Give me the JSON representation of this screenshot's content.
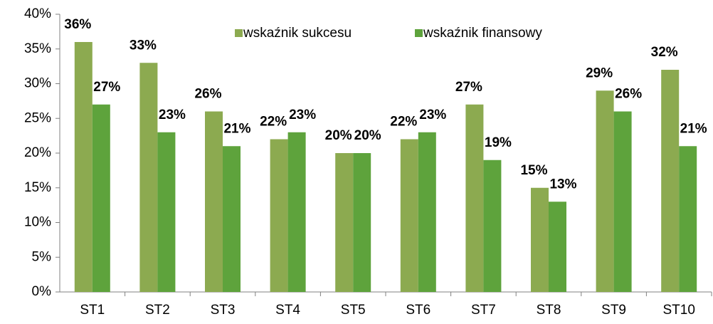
{
  "chart_data": {
    "type": "bar",
    "categories": [
      "ST1",
      "ST2",
      "ST3",
      "ST4",
      "ST5",
      "ST6",
      "ST7",
      "ST8",
      "ST9",
      "ST10"
    ],
    "series": [
      {
        "name": "wskaźnik sukcesu",
        "color": "#8caa50",
        "values": [
          36,
          33,
          26,
          22,
          20,
          22,
          27,
          15,
          29,
          32
        ],
        "value_labels": [
          "36%",
          "33%",
          "26%",
          "22%",
          "20%",
          "22%",
          "27%",
          "15%",
          "29%",
          "32%"
        ]
      },
      {
        "name": "wskaźnik finansowy",
        "color": "#5ea33c",
        "values": [
          27,
          23,
          21,
          23,
          20,
          23,
          19,
          13,
          26,
          21
        ],
        "value_labels": [
          "27%",
          "23%",
          "21%",
          "23%",
          "20%",
          "23%",
          "19%",
          "13%",
          "26%",
          "21%"
        ]
      }
    ],
    "ylim": [
      0,
      40
    ],
    "yticks": [
      {
        "value": 0,
        "label": "0%"
      },
      {
        "value": 5,
        "label": "5%"
      },
      {
        "value": 10,
        "label": "10%"
      },
      {
        "value": 15,
        "label": "15%"
      },
      {
        "value": 20,
        "label": "20%"
      },
      {
        "value": 25,
        "label": "25%"
      },
      {
        "value": 30,
        "label": "30%"
      },
      {
        "value": 35,
        "label": "35%"
      },
      {
        "value": 40,
        "label": "40%"
      }
    ],
    "grid": false,
    "legend": "upper center"
  }
}
